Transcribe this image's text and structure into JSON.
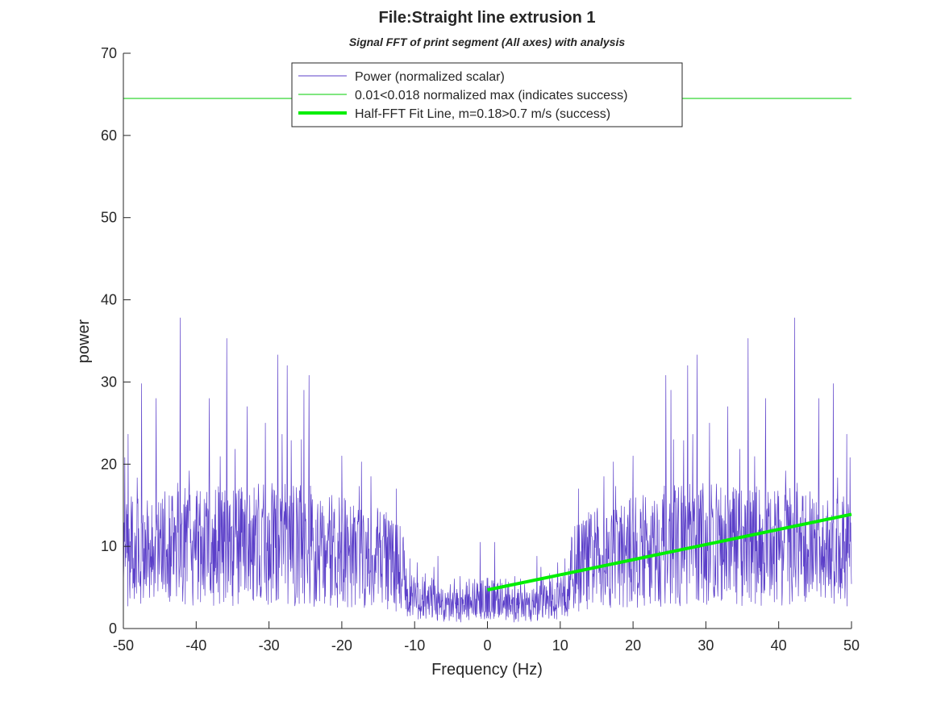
{
  "chart_data": {
    "type": "line",
    "title": "File:Straight line extrusion 1",
    "subtitle": "Signal FFT of print segment (All axes) with analysis",
    "xlabel": "Frequency (Hz)",
    "ylabel": "power",
    "xlim": [
      -50,
      50
    ],
    "ylim": [
      0,
      70
    ],
    "xticks": [
      -50,
      -40,
      -30,
      -20,
      -10,
      0,
      10,
      20,
      30,
      40,
      50
    ],
    "yticks": [
      0,
      10,
      20,
      30,
      40,
      50,
      60,
      70
    ],
    "grid": false,
    "legend_position": "top-center",
    "series": [
      {
        "name": "Power (normalized scalar)",
        "color": "#5b3fc9",
        "style": "thin",
        "kind": "noisy-spectrum-symmetric",
        "envelope_x": [
          0,
          2,
          4,
          6,
          8,
          10,
          11,
          12,
          14,
          16,
          20,
          25,
          30,
          35,
          40,
          45,
          50
        ],
        "envelope_median": [
          4,
          3.5,
          3,
          3,
          3.5,
          4.5,
          6,
          8,
          9,
          9.5,
          10,
          11,
          11,
          11,
          11,
          10,
          10
        ],
        "peaks": [
          {
            "x": 1.0,
            "y": 10.5
          },
          {
            "x": 6.8,
            "y": 8.8
          },
          {
            "x": 12.5,
            "y": 17.0
          },
          {
            "x": 16.0,
            "y": 18.5
          },
          {
            "x": 20.0,
            "y": 21.0
          },
          {
            "x": 24.5,
            "y": 30.8
          },
          {
            "x": 25.2,
            "y": 29.0
          },
          {
            "x": 27.5,
            "y": 32.0
          },
          {
            "x": 28.8,
            "y": 33.3
          },
          {
            "x": 30.5,
            "y": 25.0
          },
          {
            "x": 33.0,
            "y": 27.0
          },
          {
            "x": 35.8,
            "y": 35.3
          },
          {
            "x": 38.2,
            "y": 28.0
          },
          {
            "x": 42.2,
            "y": 37.8
          },
          {
            "x": 45.5,
            "y": 28.0
          },
          {
            "x": 47.5,
            "y": 29.8
          },
          {
            "x": 49.8,
            "y": 20.8
          }
        ]
      },
      {
        "name": "0.01<0.018 normalized max (indicates success)",
        "color": "#00cc00",
        "style": "thin",
        "kind": "horizontal",
        "y": 64.5
      },
      {
        "name": "Half-FFT Fit Line, m=0.18>0.7 m/s (success)",
        "color": "#00ee00",
        "style": "thick",
        "kind": "segment",
        "x": [
          0,
          50
        ],
        "y": [
          4.7,
          13.9
        ]
      }
    ]
  }
}
